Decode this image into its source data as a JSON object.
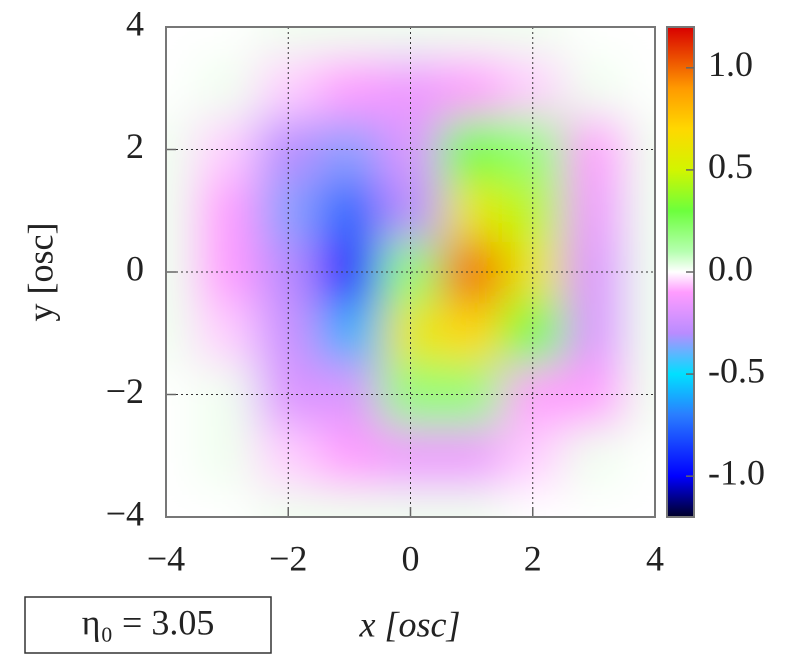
{
  "chart_data": {
    "type": "heatmap",
    "xlabel": "x [osc]",
    "ylabel": "y [osc]",
    "annotation": "η₀ = 3.05",
    "x": [
      -4,
      -3,
      -2,
      -1,
      0,
      1,
      2,
      3,
      4
    ],
    "y": [
      -4,
      -3,
      -2,
      -1,
      0,
      1,
      2,
      3,
      4
    ],
    "z": [
      [
        0,
        0,
        0.02,
        0.02,
        0.02,
        0.02,
        0,
        0,
        0
      ],
      [
        0,
        0.02,
        -0.05,
        -0.1,
        -0.15,
        -0.15,
        -0.05,
        0.02,
        0
      ],
      [
        0,
        0.02,
        -0.2,
        -0.2,
        0.2,
        0.2,
        -0.1,
        -0.1,
        0.02
      ],
      [
        0.02,
        -0.05,
        -0.25,
        -0.6,
        0.6,
        0.7,
        0.3,
        -0.2,
        0.02
      ],
      [
        0.02,
        -0.1,
        -0.3,
        -0.95,
        0.2,
        1.0,
        0.6,
        -0.2,
        0.02
      ],
      [
        0.02,
        -0.1,
        -0.35,
        -0.75,
        -0.3,
        0.6,
        0.45,
        -0.15,
        0.02
      ],
      [
        0.02,
        -0.05,
        -0.3,
        -0.35,
        -0.2,
        0.3,
        0.2,
        -0.1,
        0.02
      ],
      [
        0,
        0.02,
        -0.05,
        -0.1,
        -0.15,
        -0.1,
        -0.05,
        0.02,
        0
      ],
      [
        0,
        0,
        0.02,
        0.02,
        0.02,
        0.02,
        0.02,
        0,
        0
      ]
    ],
    "xlim": [
      -4,
      4
    ],
    "ylim": [
      -4,
      4
    ],
    "xticks": [
      {
        "value": -4,
        "label": "−4"
      },
      {
        "value": -2,
        "label": "−2"
      },
      0,
      2,
      4
    ],
    "yticks": [
      {
        "value": -4,
        "label": "−4"
      },
      {
        "value": -2,
        "label": "−2"
      },
      0,
      2,
      4
    ],
    "grid": true,
    "zlim": [
      -1.2,
      1.2
    ],
    "zticks": [
      {
        "value": -1.0,
        "label": "-1.0"
      },
      {
        "value": -0.5,
        "label": "-0.5"
      },
      {
        "value": 0.0,
        "label": "0.0"
      },
      {
        "value": 0.5,
        "label": "0.5"
      },
      {
        "value": 1.0,
        "label": "1.0"
      }
    ],
    "colormap": [
      {
        "value": -1.2,
        "color": "#000028"
      },
      {
        "value": -1.0,
        "color": "#0000ff"
      },
      {
        "value": -0.7,
        "color": "#2a7dff"
      },
      {
        "value": -0.5,
        "color": "#00e0ff"
      },
      {
        "value": -0.3,
        "color": "#b98cff"
      },
      {
        "value": -0.1,
        "color": "#ff9cff"
      },
      {
        "value": 0.0,
        "color": "#ffffff"
      },
      {
        "value": 0.1,
        "color": "#b6ffb0"
      },
      {
        "value": 0.3,
        "color": "#6cff3c"
      },
      {
        "value": 0.5,
        "color": "#d2f500"
      },
      {
        "value": 0.7,
        "color": "#ffd800"
      },
      {
        "value": 0.9,
        "color": "#ff9a00"
      },
      {
        "value": 1.2,
        "color": "#d80000"
      }
    ]
  }
}
